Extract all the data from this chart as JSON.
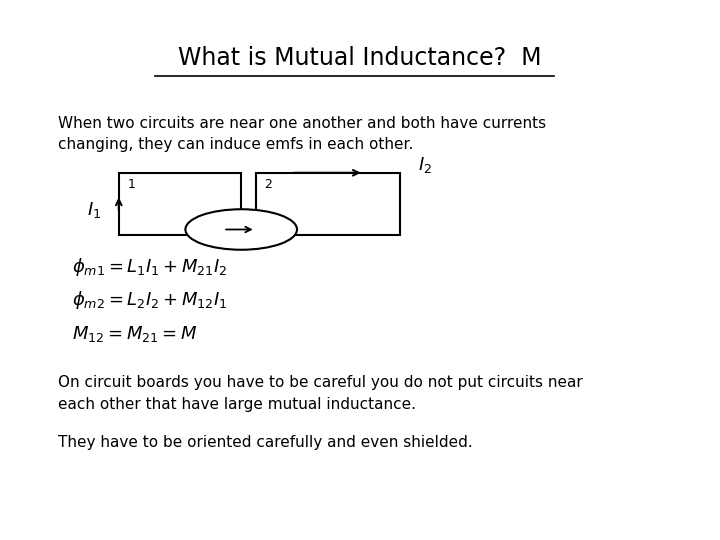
{
  "title": "What is Mutual Inductance?  M",
  "bg_color": "#ffffff",
  "text_color": "#000000",
  "body_text1": "When two circuits are near one another and both have currents\nchanging, they can induce emfs in each other.",
  "eq1": "$\\phi_{m1} = L_1I_1 + M_{21}I_2$",
  "eq2": "$\\phi_{m2} = L_2I_2 + M_{12}I_1$",
  "eq3": "$M_{12} = M_{21} = M$",
  "body_text2": "On circuit boards you have to be careful you do not put circuits near\neach other that have large mutual inductance.",
  "body_text3": "They have to be oriented carefully and even shielded.",
  "label_I1": "$I_1$",
  "label_1": "1",
  "label_2": "2",
  "label_I2": "$I_2$",
  "title_fontsize": 17,
  "body_fontsize": 11,
  "eq_fontsize": 13
}
